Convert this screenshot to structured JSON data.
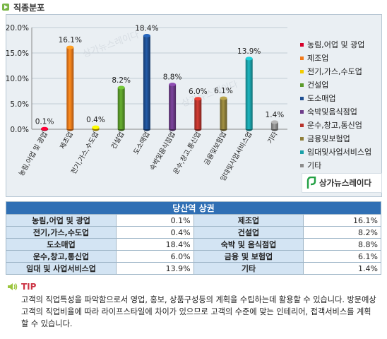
{
  "section_title": "직종분포",
  "chart_data": {
    "type": "bar",
    "categories": [
      "농림,어업 및 광업",
      "제조업",
      "전기,가스,수도업",
      "건설업",
      "도소매업",
      "숙박및음식점업",
      "운수,창고,통신업",
      "금융및보험업",
      "임대및사업서비스업",
      "기타"
    ],
    "values": [
      0.1,
      16.1,
      0.4,
      8.2,
      18.4,
      8.8,
      6.0,
      6.1,
      13.9,
      1.4
    ],
    "value_labels": [
      "0.1%",
      "16.1%",
      "0.4%",
      "8.2%",
      "18.4%",
      "8.8%",
      "6.0%",
      "6.1%",
      "13.9%",
      "1.4%"
    ],
    "colors": [
      "#d6002a",
      "#f27a1a",
      "#f2cc00",
      "#5a9a2a",
      "#1f4f92",
      "#6e3c8a",
      "#b8342c",
      "#8f7f3a",
      "#1aa0a8",
      "#8c8c8c"
    ],
    "y_ticks": [
      "0.0%",
      "5.0%",
      "10.0%",
      "15.0%",
      "20.0%"
    ],
    "ylim": [
      0,
      20
    ],
    "grid": true,
    "legend_position": "right",
    "watermark": "상가뉴스레이다"
  },
  "brand_logo": "상가뉴스레이다",
  "table": {
    "title": "당산역 상권",
    "rows": [
      [
        "농림,어업 및 광업",
        "0.1%",
        "제조업",
        "16.1%"
      ],
      [
        "전기,가스,수도업",
        "0.4%",
        "건설업",
        "8.2%"
      ],
      [
        "도소매업",
        "18.4%",
        "숙박 및 음식점업",
        "8.8%"
      ],
      [
        "운수,창고,통신업",
        "6.0%",
        "금융 및 보험업",
        "6.1%"
      ],
      [
        "임대 및 사업서비스업",
        "13.9%",
        "기타",
        "1.4%"
      ]
    ]
  },
  "tip": {
    "label": "TIP",
    "text": "고객의 직업특성을 파악함으로서 영업, 홍보, 상품구성등의 계획을 수립하는데 활용할 수 있습니다. 방문예상 고객의 직업비율에 따라 라이프스타일에 차이가 있으므로 고객의 수준에 맞는 인테리어, 접객서비스를 계획 할 수 있습니다."
  }
}
